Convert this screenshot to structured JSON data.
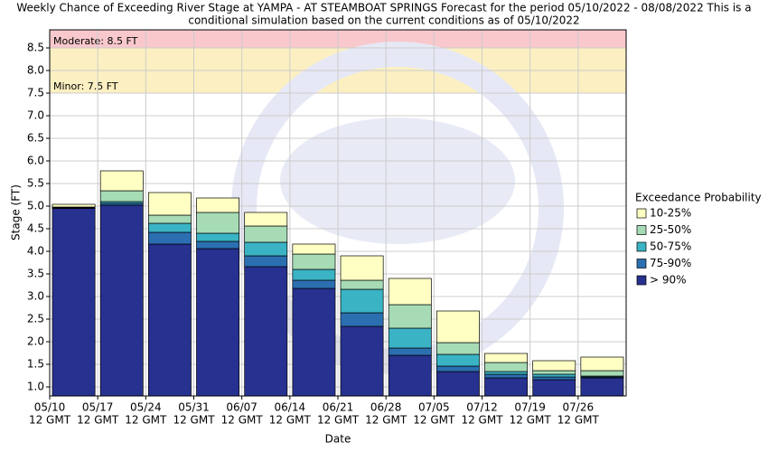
{
  "chart_data": {
    "type": "bar",
    "title": "Weekly Chance of Exceeding River Stage at YAMPA - AT STEAMBOAT SPRINGS Forecast for the period 05/10/2022 - 08/08/2022 This is a",
    "subtitle": "conditional simulation based on the current conditions as of 05/10/2022",
    "x_label": "Date",
    "y_label": "Stage (FT)",
    "categories": [
      "05/10",
      "05/17",
      "05/24",
      "05/31",
      "06/07",
      "06/14",
      "06/21",
      "06/28",
      "07/05",
      "07/12",
      "07/19",
      "07/26"
    ],
    "category_suffix": "12 GMT",
    "legend_title": "Exceedance Probability",
    "legend": "right",
    "grid": true,
    "ylim": [
      0.8,
      8.9
    ],
    "yticks": [
      {
        "value": 1,
        "label": "1.0"
      },
      1.5,
      {
        "value": 2,
        "label": "2.0"
      },
      2.5,
      {
        "value": 3,
        "label": "3.0"
      },
      3.5,
      {
        "value": 4,
        "label": "4.0"
      },
      4.5,
      {
        "value": 5,
        "label": "5.0"
      },
      5.5,
      {
        "value": 6,
        "label": "6.0"
      },
      6.5,
      {
        "value": 7,
        "label": "7.0"
      },
      7.5,
      {
        "value": 8,
        "label": "8.0"
      },
      8.5
    ],
    "thresholds": [
      {
        "label": "Moderate: 8.5 FT",
        "value": 8.5,
        "color": "#f8c8cc"
      },
      {
        "label": "Minor: 7.5 FT",
        "value": 7.5,
        "color": "#fcf0c2"
      }
    ],
    "series": [
      {
        "name": "> 90%",
        "color": "#27318f",
        "values": [
          4.95,
          5.02,
          4.16,
          4.06,
          3.66,
          3.18,
          2.34,
          1.7,
          1.34,
          1.2,
          1.16,
          1.2
        ]
      },
      {
        "name": "75-90%",
        "color": "#2b6fb0",
        "values": [
          4.96,
          5.06,
          4.42,
          4.22,
          3.9,
          3.36,
          2.64,
          1.86,
          1.46,
          1.28,
          1.22,
          1.22
        ]
      },
      {
        "name": "50-75%",
        "color": "#3ab3c4",
        "values": [
          4.97,
          5.1,
          4.62,
          4.4,
          4.2,
          3.6,
          3.16,
          2.3,
          1.72,
          1.34,
          1.28,
          1.24
        ]
      },
      {
        "name": "25-50%",
        "color": "#a6dbb5",
        "values": [
          4.98,
          5.34,
          4.8,
          4.86,
          4.56,
          3.94,
          3.36,
          2.82,
          1.98,
          1.54,
          1.36,
          1.36
        ]
      },
      {
        "name": "10-25%",
        "color": "#ffffc4",
        "values": [
          5.04,
          5.78,
          5.3,
          5.18,
          4.86,
          4.16,
          3.9,
          3.4,
          2.68,
          1.74,
          1.58,
          1.66
        ]
      }
    ]
  }
}
